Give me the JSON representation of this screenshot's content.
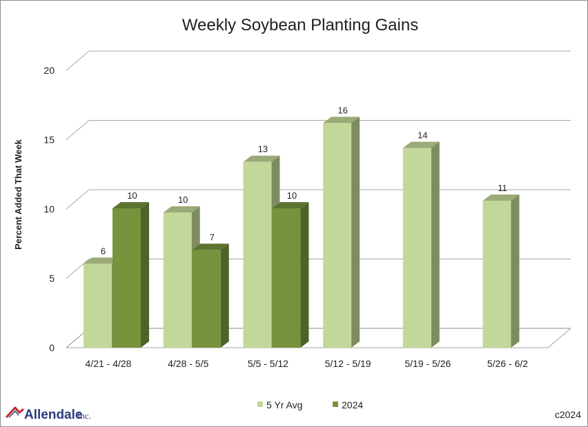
{
  "chart_data": {
    "type": "bar",
    "title": "Weekly Soybean Planting Gains",
    "ylabel": "Percent Added That Week",
    "xlabel": "",
    "ylim": [
      0,
      20
    ],
    "yticks": [
      0,
      5,
      10,
      15,
      20
    ],
    "categories": [
      "4/21 - 4/28",
      "4/28 - 5/5",
      "5/5 - 5/12",
      "5/12 - 5/19",
      "5/19 - 5/26",
      "5/26 - 6/2"
    ],
    "series": [
      {
        "name": "5 Yr Avg",
        "values": [
          6,
          10,
          13,
          16,
          14,
          11
        ],
        "plot_values": [
          6.05,
          9.75,
          13.4,
          16.2,
          14.4,
          10.6
        ],
        "labels": [
          "6",
          "10",
          "13",
          "16",
          "14",
          "11"
        ],
        "color": "#c4d79b"
      },
      {
        "name": "2024",
        "values": [
          10,
          7,
          10,
          null,
          null,
          null
        ],
        "plot_values": [
          10.05,
          7.05,
          10.05,
          null,
          null,
          null
        ],
        "labels": [
          "10",
          "7",
          "10",
          "",
          "",
          ""
        ],
        "color": "#77933c"
      }
    ],
    "grid": true,
    "legend_position": "bottom",
    "three_d": true
  },
  "footer": {
    "logo": "Allendale",
    "logo_suffix": "Inc.",
    "credit": "c2024"
  }
}
